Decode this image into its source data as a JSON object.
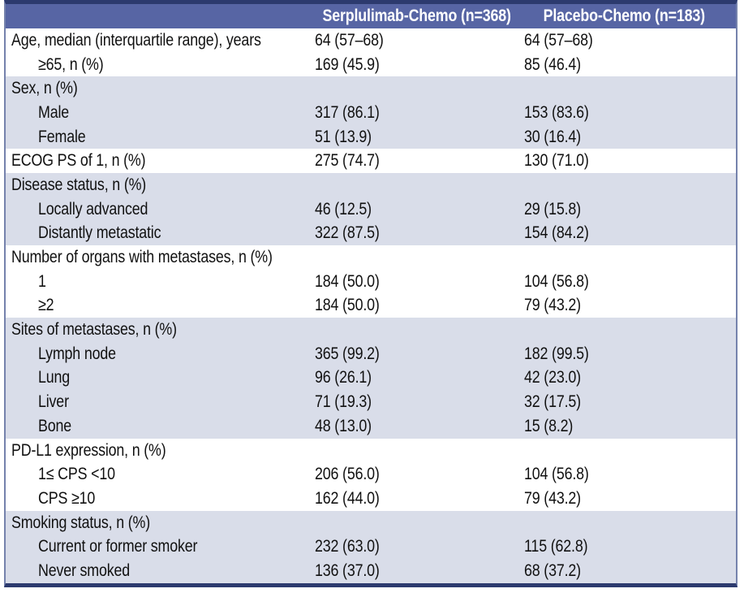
{
  "colors": {
    "header_bg": "#5765A4",
    "header_text": "#FFFFFF",
    "band_blue": "#D9DDE9",
    "dark_rule": "#2C3A6E",
    "side_border": "#7582AC",
    "body_text": "#111111"
  },
  "table": {
    "columns": [
      "",
      "Serplulimab-Chemo (n=368)",
      "Placebo-Chemo (n=183)"
    ],
    "groups": [
      {
        "band": "white",
        "rows": [
          {
            "label": "Age, median (interquartile range), years",
            "indent": false,
            "serplulimab": "64 (57–68)",
            "placebo": "64 (57–68)"
          },
          {
            "label": "≥65, n (%)",
            "indent": true,
            "serplulimab": "169 (45.9)",
            "placebo": "85 (46.4)"
          }
        ]
      },
      {
        "band": "blue",
        "rows": [
          {
            "label": "Sex, n (%)",
            "indent": false,
            "serplulimab": "",
            "placebo": ""
          },
          {
            "label": "Male",
            "indent": true,
            "serplulimab": "317 (86.1)",
            "placebo": "153 (83.6)"
          },
          {
            "label": "Female",
            "indent": true,
            "serplulimab": "51 (13.9)",
            "placebo": "30 (16.4)"
          }
        ]
      },
      {
        "band": "white",
        "rows": [
          {
            "label": "ECOG PS of 1, n (%)",
            "indent": false,
            "serplulimab": "275 (74.7)",
            "placebo": "130 (71.0)"
          }
        ]
      },
      {
        "band": "blue",
        "rows": [
          {
            "label": "Disease status, n (%)",
            "indent": false,
            "serplulimab": "",
            "placebo": ""
          },
          {
            "label": "Locally advanced",
            "indent": true,
            "serplulimab": "46 (12.5)",
            "placebo": "29 (15.8)"
          },
          {
            "label": "Distantly metastatic",
            "indent": true,
            "serplulimab": "322 (87.5)",
            "placebo": "154 (84.2)"
          }
        ]
      },
      {
        "band": "white",
        "rows": [
          {
            "label": "Number of organs with metastases, n (%)",
            "indent": false,
            "serplulimab": "",
            "placebo": ""
          },
          {
            "label": "1",
            "indent": true,
            "serplulimab": "184 (50.0)",
            "placebo": "104 (56.8)"
          },
          {
            "label": "≥2",
            "indent": true,
            "serplulimab": "184 (50.0)",
            "placebo": "79 (43.2)"
          }
        ]
      },
      {
        "band": "blue",
        "rows": [
          {
            "label": "Sites of metastases, n (%)",
            "indent": false,
            "serplulimab": "",
            "placebo": ""
          },
          {
            "label": "Lymph node",
            "indent": true,
            "serplulimab": "365 (99.2)",
            "placebo": "182 (99.5)"
          },
          {
            "label": "Lung",
            "indent": true,
            "serplulimab": "96 (26.1)",
            "placebo": "42 (23.0)"
          },
          {
            "label": "Liver",
            "indent": true,
            "serplulimab": "71 (19.3)",
            "placebo": "32 (17.5)"
          },
          {
            "label": "Bone",
            "indent": true,
            "serplulimab": "48 (13.0)",
            "placebo": "15 (8.2)"
          }
        ]
      },
      {
        "band": "white",
        "rows": [
          {
            "label": "PD-L1 expression, n (%)",
            "indent": false,
            "serplulimab": "",
            "placebo": ""
          },
          {
            "label": "1≤ CPS <10",
            "indent": true,
            "serplulimab": "206 (56.0)",
            "placebo": "104 (56.8)"
          },
          {
            "label": "CPS ≥10",
            "indent": true,
            "serplulimab": "162 (44.0)",
            "placebo": "79 (43.2)"
          }
        ]
      },
      {
        "band": "blue",
        "rows": [
          {
            "label": "Smoking status, n (%)",
            "indent": false,
            "serplulimab": "",
            "placebo": ""
          },
          {
            "label": "Current or former smoker",
            "indent": true,
            "serplulimab": "232 (63.0)",
            "placebo": "115 (62.8)"
          },
          {
            "label": "Never smoked",
            "indent": true,
            "serplulimab": "136 (37.0)",
            "placebo": "68 (37.2)"
          }
        ]
      }
    ]
  }
}
